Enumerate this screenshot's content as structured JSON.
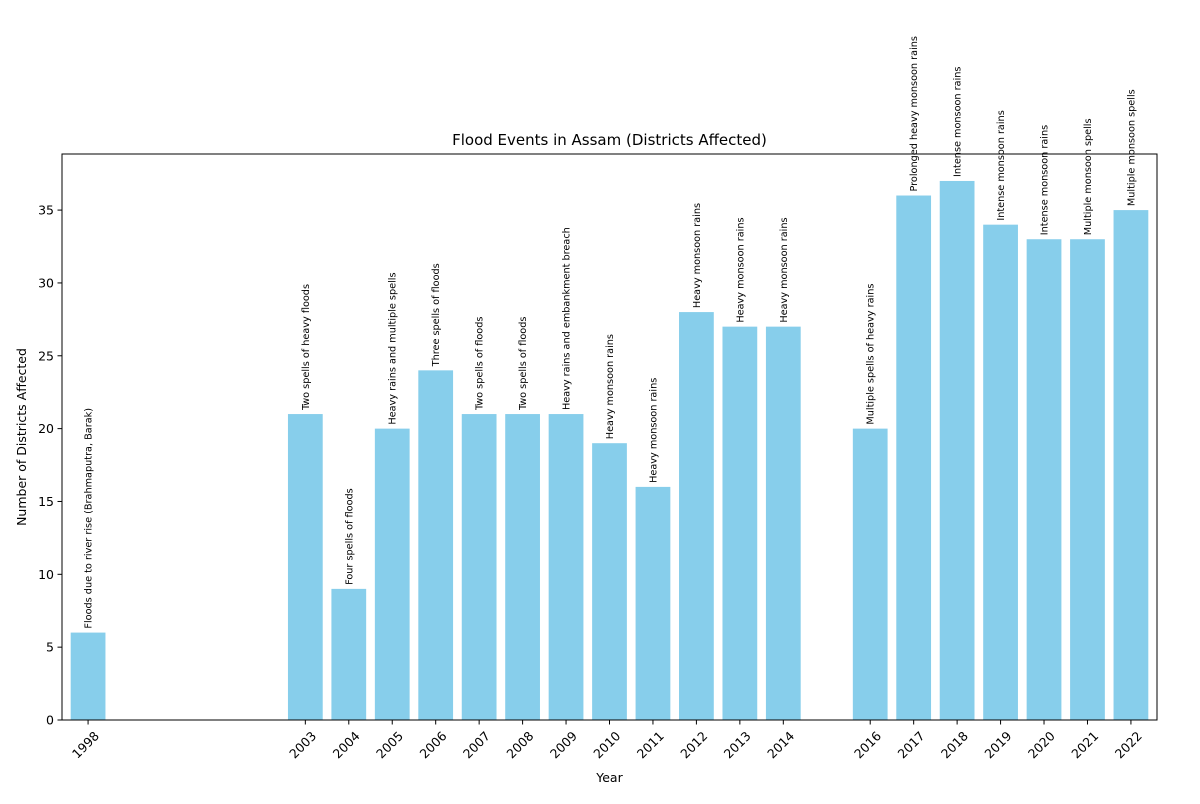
{
  "chart_data": {
    "type": "bar",
    "title": "Flood Events in Assam (Districts Affected)",
    "xlabel": "Year",
    "ylabel": "Number of Districts Affected",
    "x": [
      1998,
      2003,
      2004,
      2005,
      2006,
      2007,
      2008,
      2009,
      2010,
      2011,
      2012,
      2013,
      2014,
      2016,
      2017,
      2018,
      2019,
      2020,
      2021,
      2022
    ],
    "values": [
      6,
      21,
      9,
      20,
      24,
      21,
      21,
      21,
      19,
      16,
      28,
      27,
      27,
      20,
      36,
      37,
      34,
      33,
      33,
      35
    ],
    "annotations": [
      "Floods due to river rise (Brahmaputra, Barak)",
      "Two spells of heavy floods",
      "Four spells of floods",
      "Heavy rains and multiple spells",
      "Three spells of floods",
      "Two spells of floods",
      "Two spells of floods",
      "Heavy rains and embankment breach",
      "Heavy monsoon rains",
      "Heavy monsoon rains",
      "Heavy monsoon rains",
      "Heavy monsoon rains",
      "Heavy monsoon rains",
      "Multiple spells of heavy rains",
      "Prolonged heavy monsoon rains",
      "Intense monsoon rains",
      "Intense monsoon rains",
      "Intense monsoon rains",
      "Multiple monsoon spells",
      "Multiple monsoon spells"
    ],
    "xlim": [
      1997.4,
      2022.6
    ],
    "ylim": [
      0,
      38.85
    ],
    "yticks": [
      0,
      5,
      10,
      15,
      20,
      25,
      30,
      35
    ],
    "bar_color": "#87CEEB",
    "grid": false,
    "legend": "none"
  }
}
